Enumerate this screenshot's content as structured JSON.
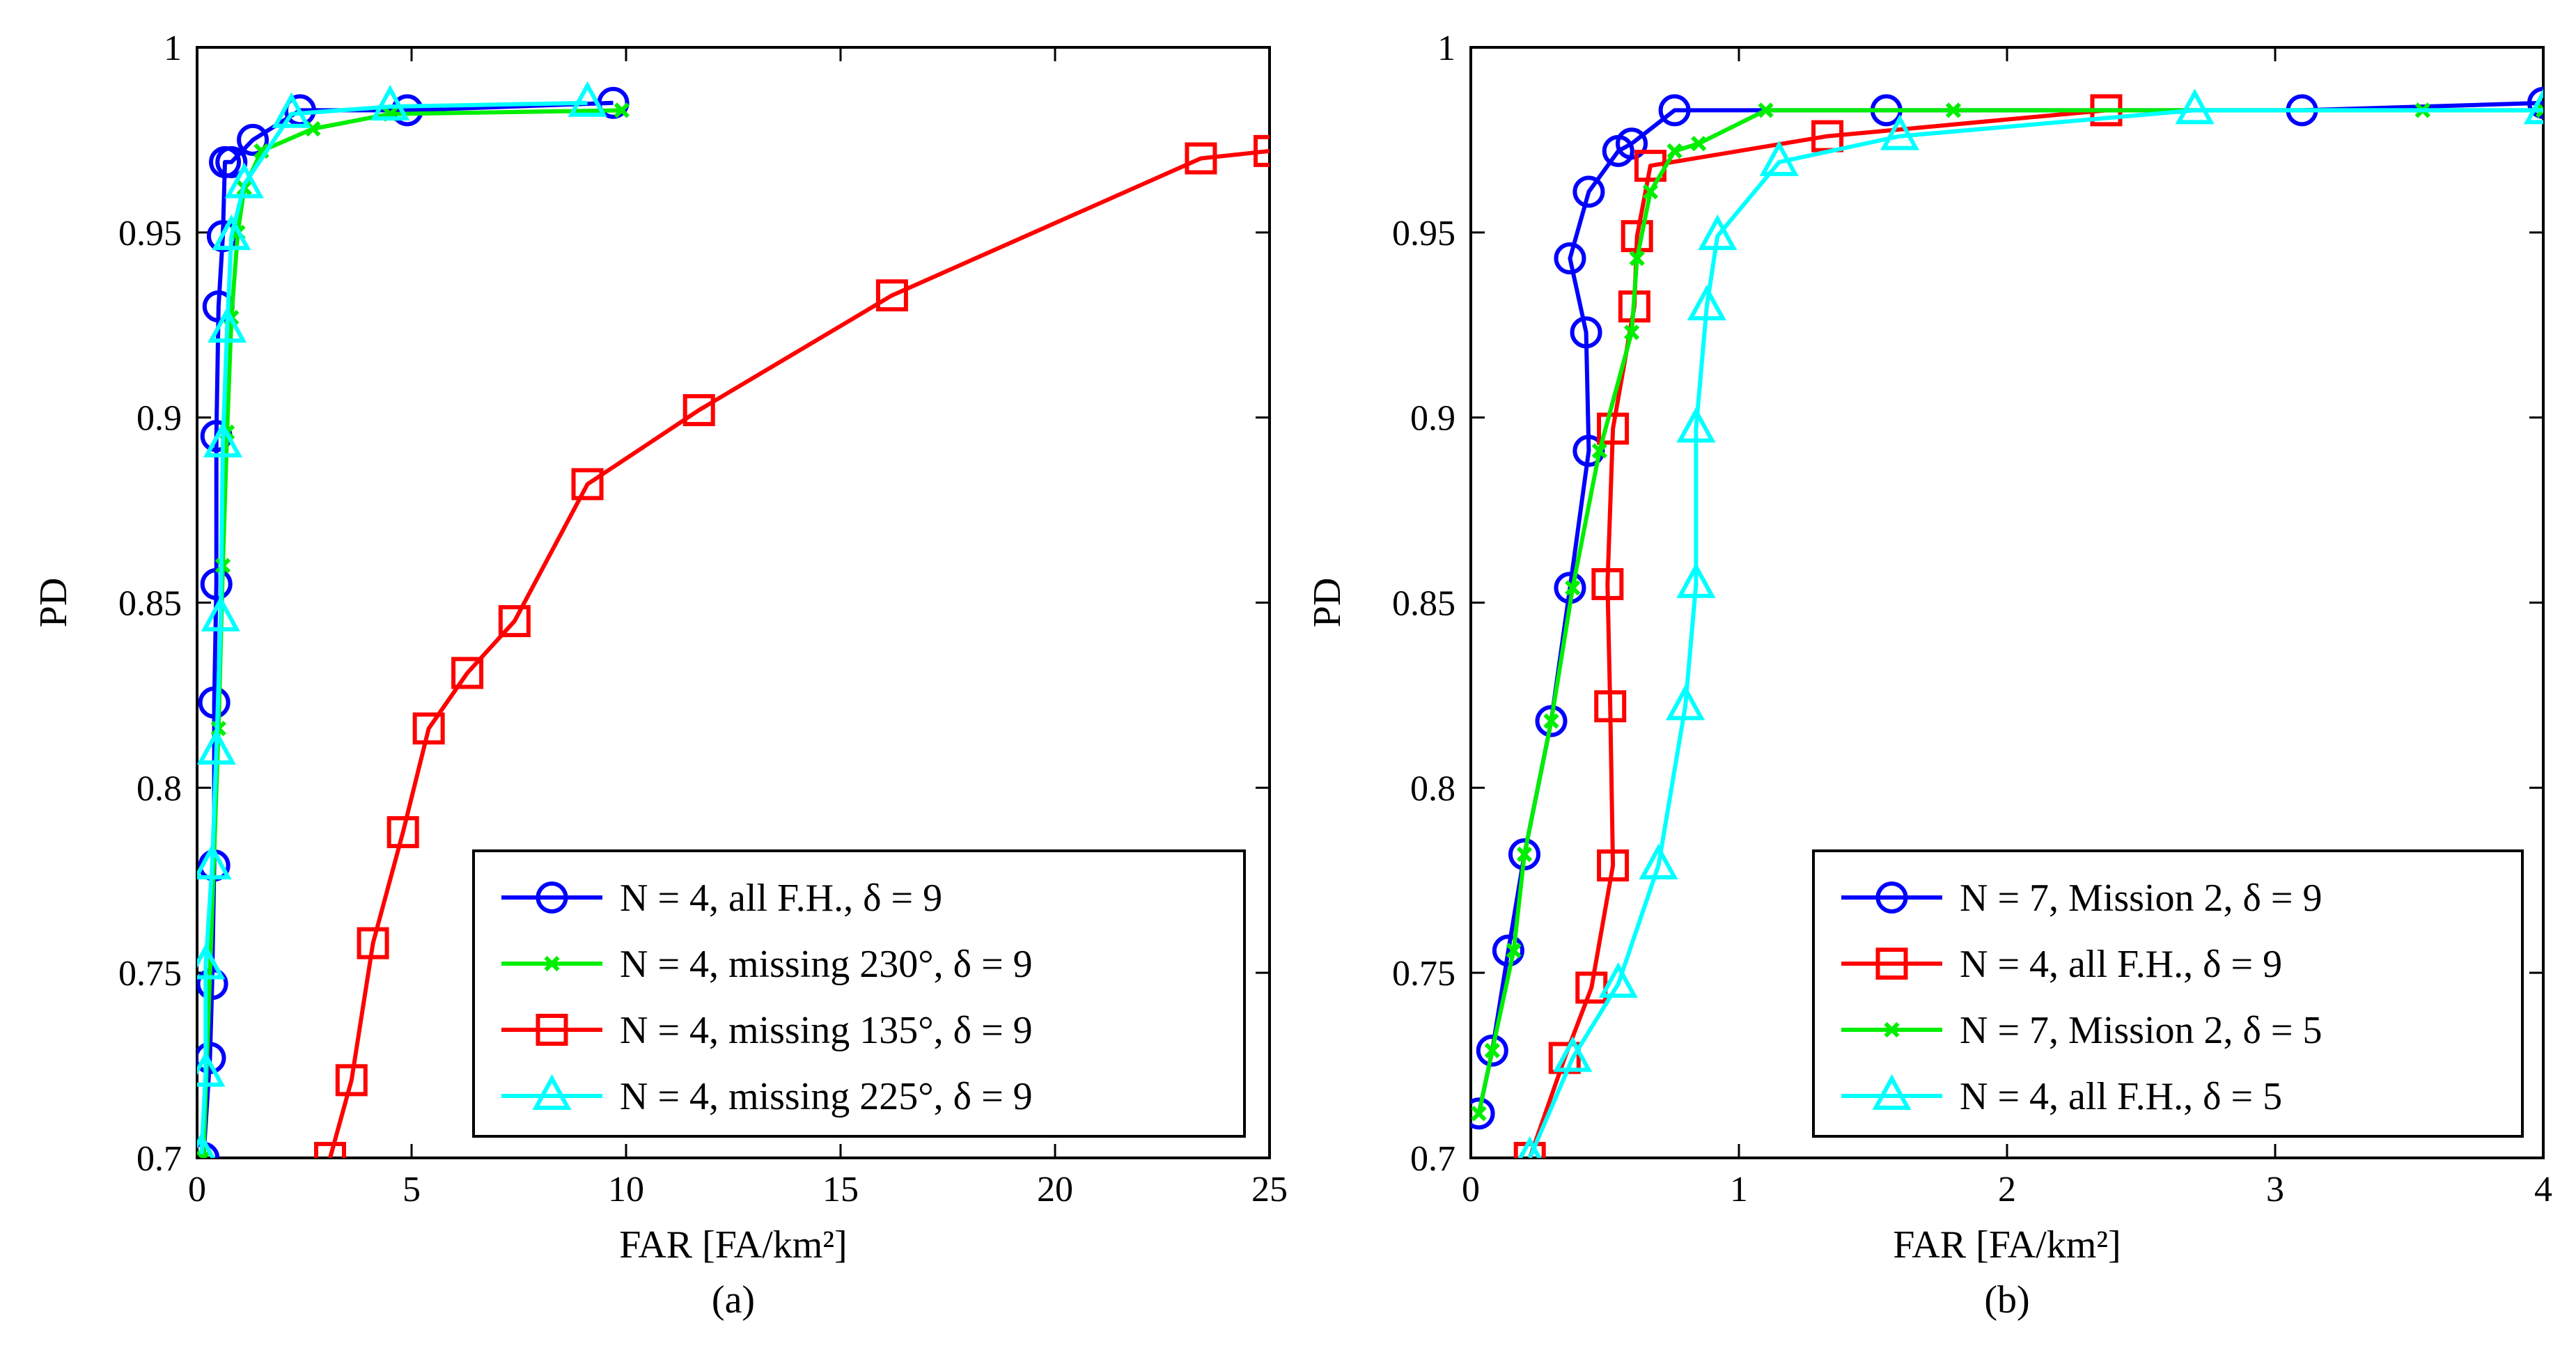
{
  "chart_data": [
    {
      "type": "line",
      "panel_label": "(a)",
      "xlabel": "FAR [FA/km²]",
      "ylabel": "PD",
      "xlim": [
        0,
        25
      ],
      "ylim": [
        0.7,
        1.0
      ],
      "xticks": [
        "0",
        "5",
        "10",
        "15",
        "20",
        "25"
      ],
      "yticks": [
        "0.7",
        "0.75",
        "0.8",
        "0.85",
        "0.9",
        "0.95",
        "1"
      ],
      "legend_location": "bottom-right",
      "series": [
        {
          "name": "N = 4, all F.H., δ = 9",
          "color": "#0000ff",
          "marker": "circle",
          "x": [
            0.15,
            0.3,
            0.35,
            0.4,
            0.4,
            0.45,
            0.45,
            0.5,
            0.6,
            0.65,
            0.8,
            1.3,
            2.4,
            4.9,
            9.7
          ],
          "y": [
            0.7,
            0.727,
            0.747,
            0.779,
            0.823,
            0.855,
            0.895,
            0.93,
            0.949,
            0.969,
            0.969,
            0.975,
            0.983,
            0.983,
            0.985
          ]
        },
        {
          "name": "N = 4, missing 230°, δ = 9",
          "color": "#00ee00",
          "marker": "x",
          "x": [
            0.15,
            0.5,
            0.6,
            0.7,
            0.8,
            0.95,
            1.1,
            1.5,
            2.7,
            4.5,
            9.9
          ],
          "y": [
            0.7,
            0.816,
            0.86,
            0.896,
            0.927,
            0.95,
            0.962,
            0.972,
            0.978,
            0.982,
            0.983
          ]
        },
        {
          "name": "N = 4, missing 135°, δ = 9",
          "color": "#ff0000",
          "marker": "square",
          "x": [
            3.1,
            3.6,
            4.1,
            4.8,
            5.4,
            6.3,
            7.4,
            9.1,
            11.7,
            16.2,
            23.4,
            25.0
          ],
          "y": [
            0.7,
            0.721,
            0.758,
            0.788,
            0.816,
            0.831,
            0.845,
            0.882,
            0.902,
            0.933,
            0.97,
            0.972
          ]
        },
        {
          "name": "N = 4, missing 225°, δ = 9",
          "color": "#00ffff",
          "marker": "triangle",
          "x": [
            0.1,
            0.2,
            0.2,
            0.35,
            0.45,
            0.55,
            0.6,
            0.7,
            0.8,
            1.1,
            2.2,
            4.5,
            9.1
          ],
          "y": [
            0.701,
            0.723,
            0.752,
            0.779,
            0.81,
            0.846,
            0.893,
            0.924,
            0.949,
            0.963,
            0.982,
            0.984,
            0.985
          ]
        }
      ]
    },
    {
      "type": "line",
      "panel_label": "(b)",
      "xlabel": "FAR [FA/km²]",
      "ylabel": "PD",
      "xlim": [
        0,
        4
      ],
      "ylim": [
        0.7,
        1.0
      ],
      "xticks": [
        "0",
        "1",
        "2",
        "3",
        "4"
      ],
      "yticks": [
        "0.7",
        "0.75",
        "0.8",
        "0.85",
        "0.9",
        "0.95",
        "1"
      ],
      "legend_location": "bottom-right",
      "series": [
        {
          "name": "N = 7, Mission 2, δ = 9",
          "color": "#0000ff",
          "marker": "circle",
          "x": [
            0.03,
            0.08,
            0.14,
            0.2,
            0.3,
            0.37,
            0.44,
            0.43,
            0.37,
            0.44,
            0.55,
            0.6,
            0.76,
            1.55,
            3.1,
            4.0
          ],
          "y": [
            0.712,
            0.729,
            0.756,
            0.782,
            0.818,
            0.854,
            0.891,
            0.923,
            0.943,
            0.961,
            0.972,
            0.974,
            0.983,
            0.983,
            0.983,
            0.985
          ]
        },
        {
          "name": "N = 4, all F.H., δ = 9",
          "color": "#ff0000",
          "marker": "square",
          "x": [
            0.22,
            0.35,
            0.45,
            0.53,
            0.52,
            0.51,
            0.53,
            0.61,
            0.62,
            0.67,
            1.33,
            2.37
          ],
          "y": [
            0.7,
            0.727,
            0.746,
            0.779,
            0.822,
            0.855,
            0.897,
            0.93,
            0.949,
            0.968,
            0.976,
            0.983
          ]
        },
        {
          "name": "N = 7, Mission 2, δ = 5",
          "color": "#00ee00",
          "marker": "x",
          "x": [
            0.03,
            0.08,
            0.16,
            0.2,
            0.3,
            0.38,
            0.48,
            0.6,
            0.62,
            0.67,
            0.76,
            0.85,
            1.1,
            1.8,
            3.55,
            4.0
          ],
          "y": [
            0.712,
            0.729,
            0.756,
            0.782,
            0.818,
            0.854,
            0.891,
            0.923,
            0.943,
            0.961,
            0.972,
            0.974,
            0.983,
            0.983,
            0.983,
            0.983
          ]
        },
        {
          "name": "N = 4, all F.H., δ = 5",
          "color": "#00ffff",
          "marker": "triangle",
          "x": [
            0.22,
            0.38,
            0.55,
            0.7,
            0.8,
            0.84,
            0.84,
            0.88,
            0.92,
            1.15,
            1.6,
            2.7,
            4.0
          ],
          "y": [
            0.7,
            0.727,
            0.747,
            0.779,
            0.822,
            0.855,
            0.897,
            0.93,
            0.949,
            0.969,
            0.976,
            0.983,
            0.983
          ]
        }
      ]
    }
  ]
}
